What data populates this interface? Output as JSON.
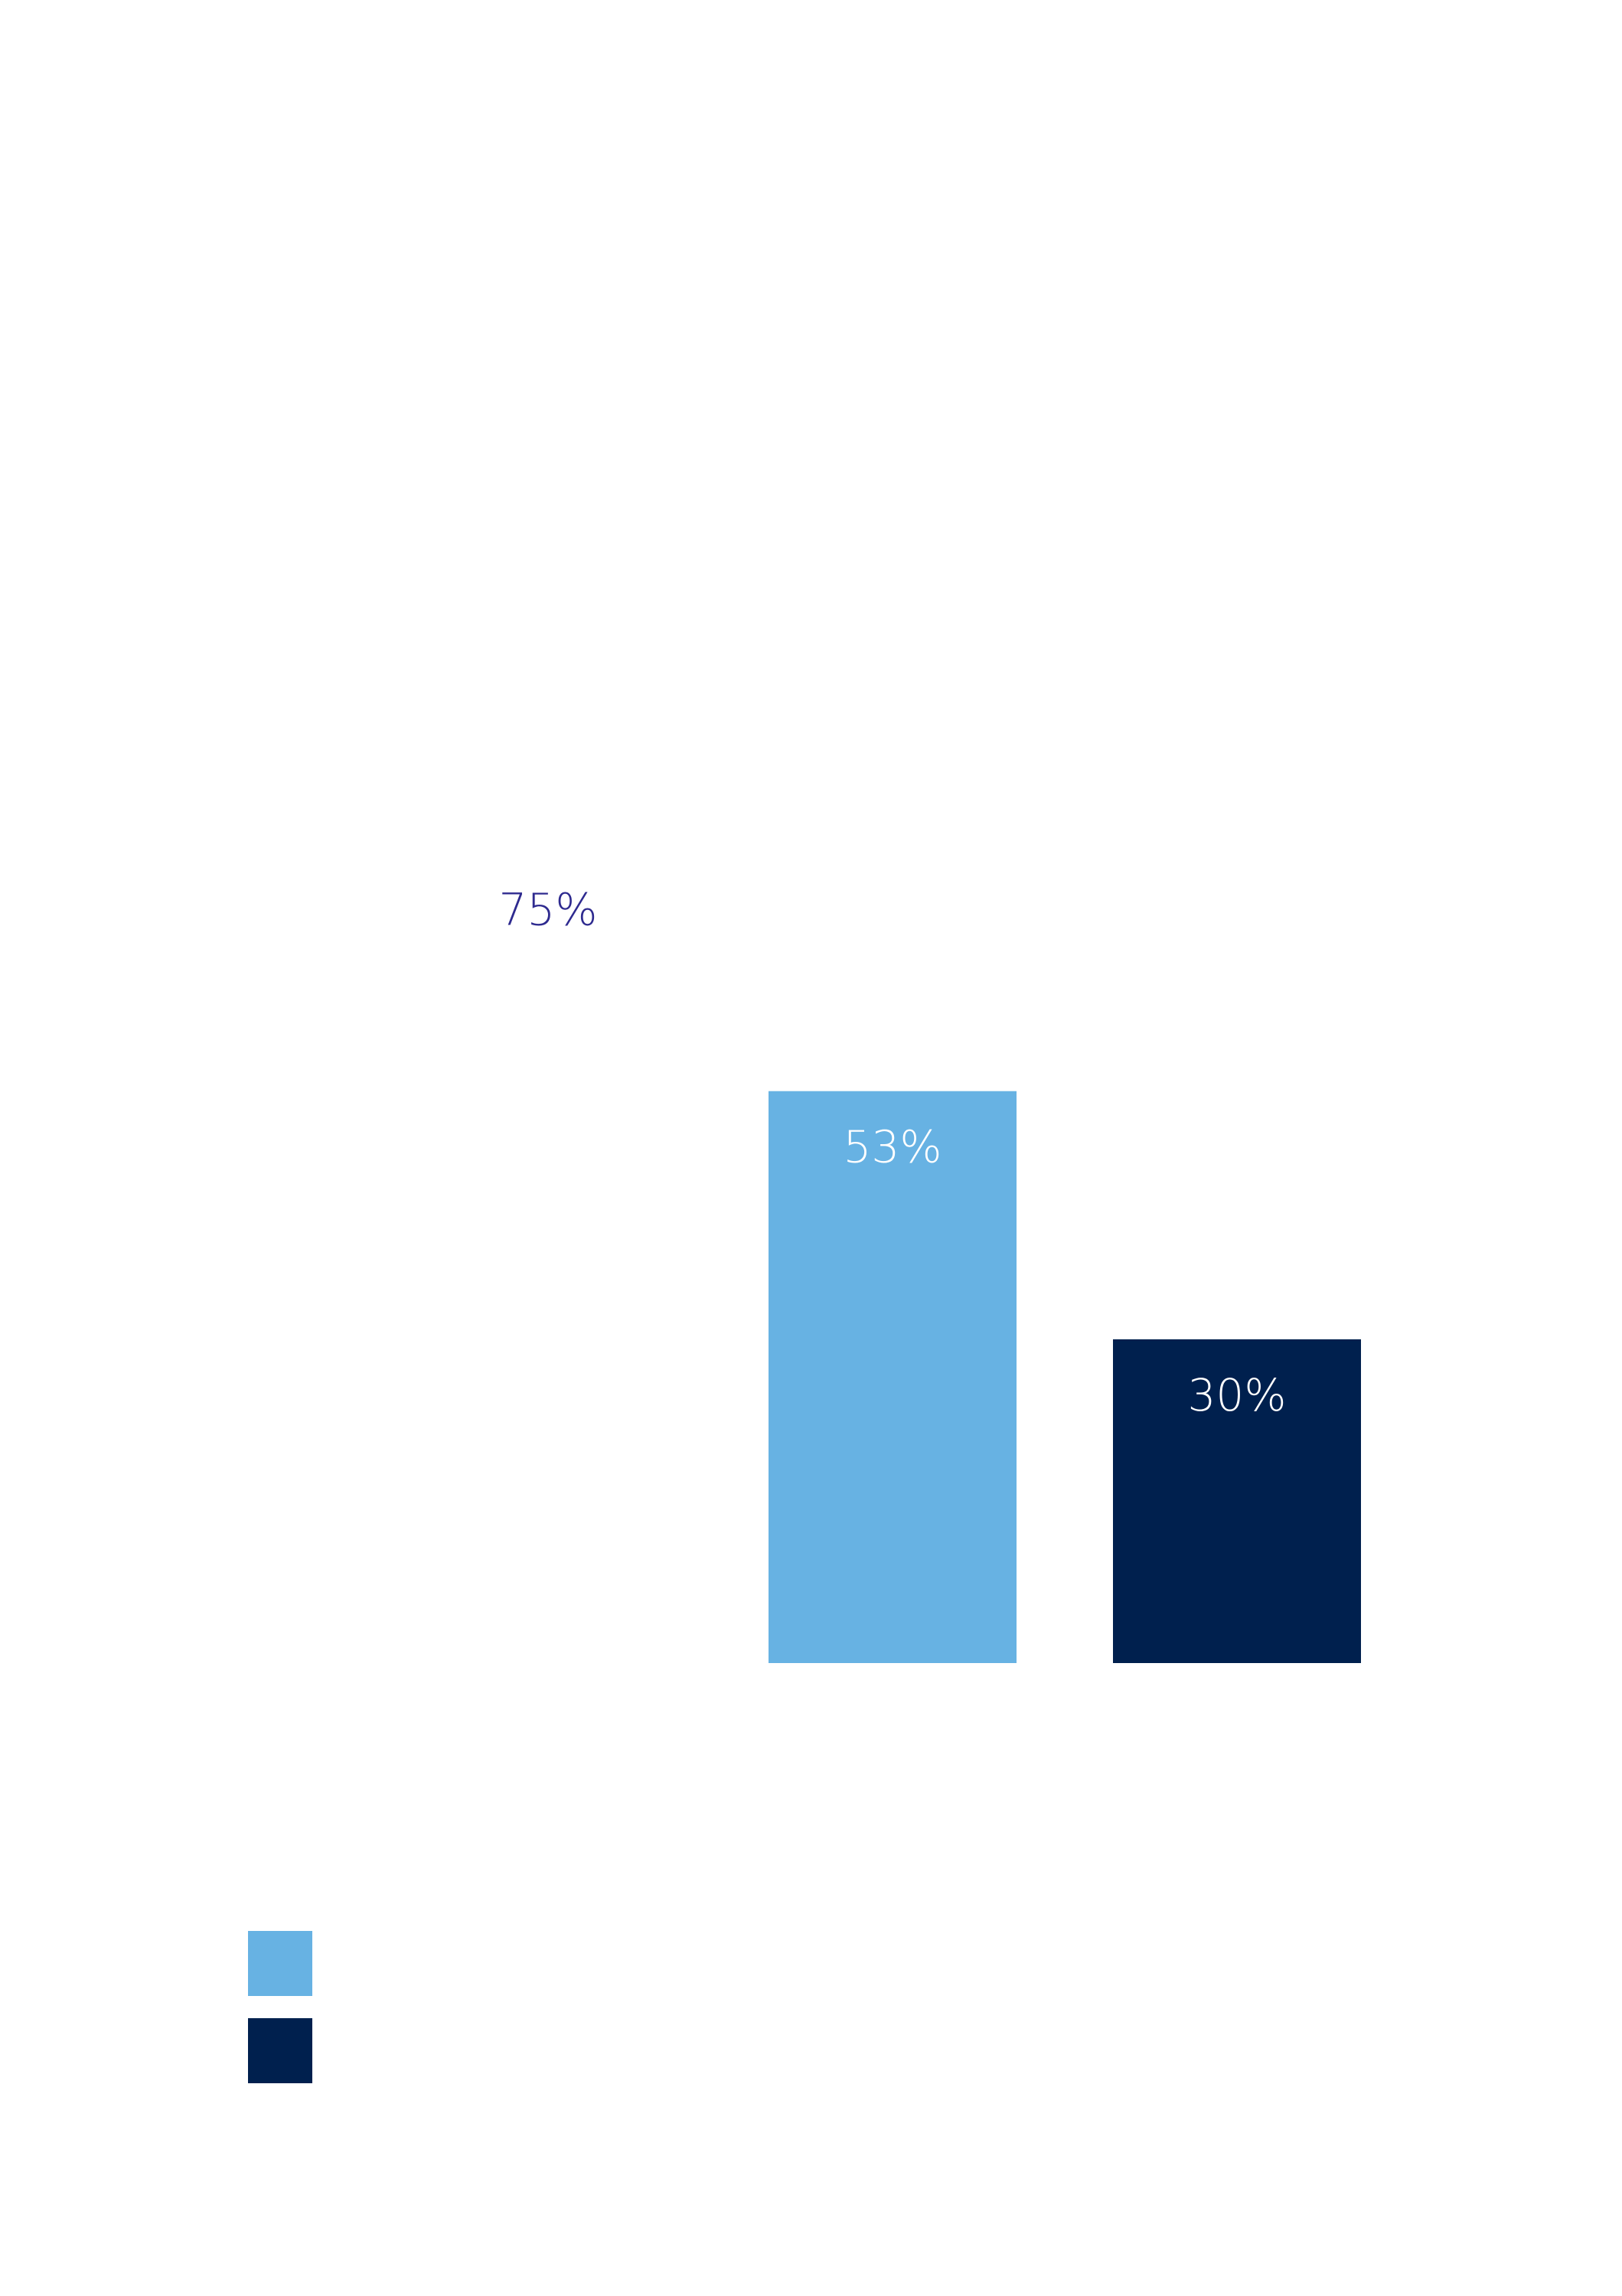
{
  "chart_data": {
    "type": "bar",
    "categories": [
      null,
      null,
      null
    ],
    "values": [
      75,
      53,
      30
    ],
    "value_labels": [
      "75%",
      "53%",
      "30%"
    ],
    "colors": [
      "#ffffff",
      "#67b2e3",
      "#00204e"
    ],
    "value_label_colors": [
      "#2e2a8f",
      "#ffffff",
      "#ffffff"
    ],
    "ylim": [
      0,
      100
    ],
    "legend": {
      "position": "bottom-left",
      "colors": [
        "#67b2e3",
        "#00204e"
      ]
    }
  }
}
